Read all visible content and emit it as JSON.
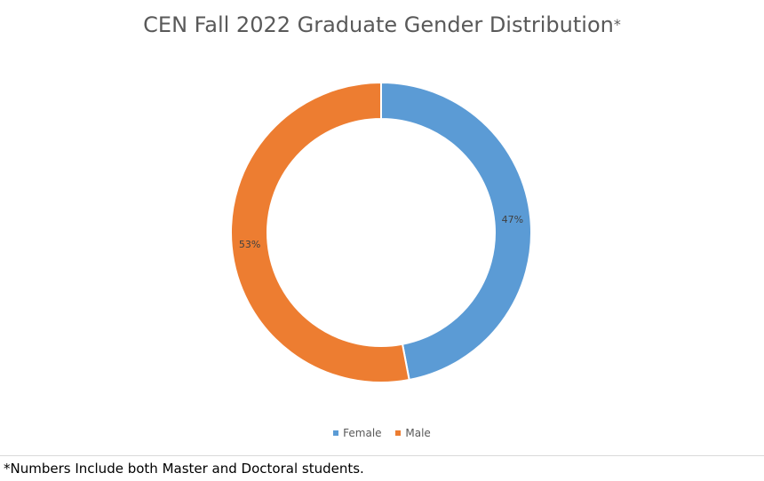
{
  "chart_data": {
    "type": "pie",
    "variant": "donut",
    "title": "CEN Fall 2022 Graduate Gender Distribution",
    "title_suffix": "*",
    "categories": [
      "Female",
      "Male"
    ],
    "values": [
      47,
      53
    ],
    "data_labels": [
      "47%",
      "53%"
    ],
    "colors": [
      "#5b9bd5",
      "#ed7d31"
    ],
    "legend": {
      "placement": "bottom",
      "entries": [
        "Female",
        "Male"
      ]
    }
  },
  "footnote": "*Numbers Include both Master and Doctoral students."
}
